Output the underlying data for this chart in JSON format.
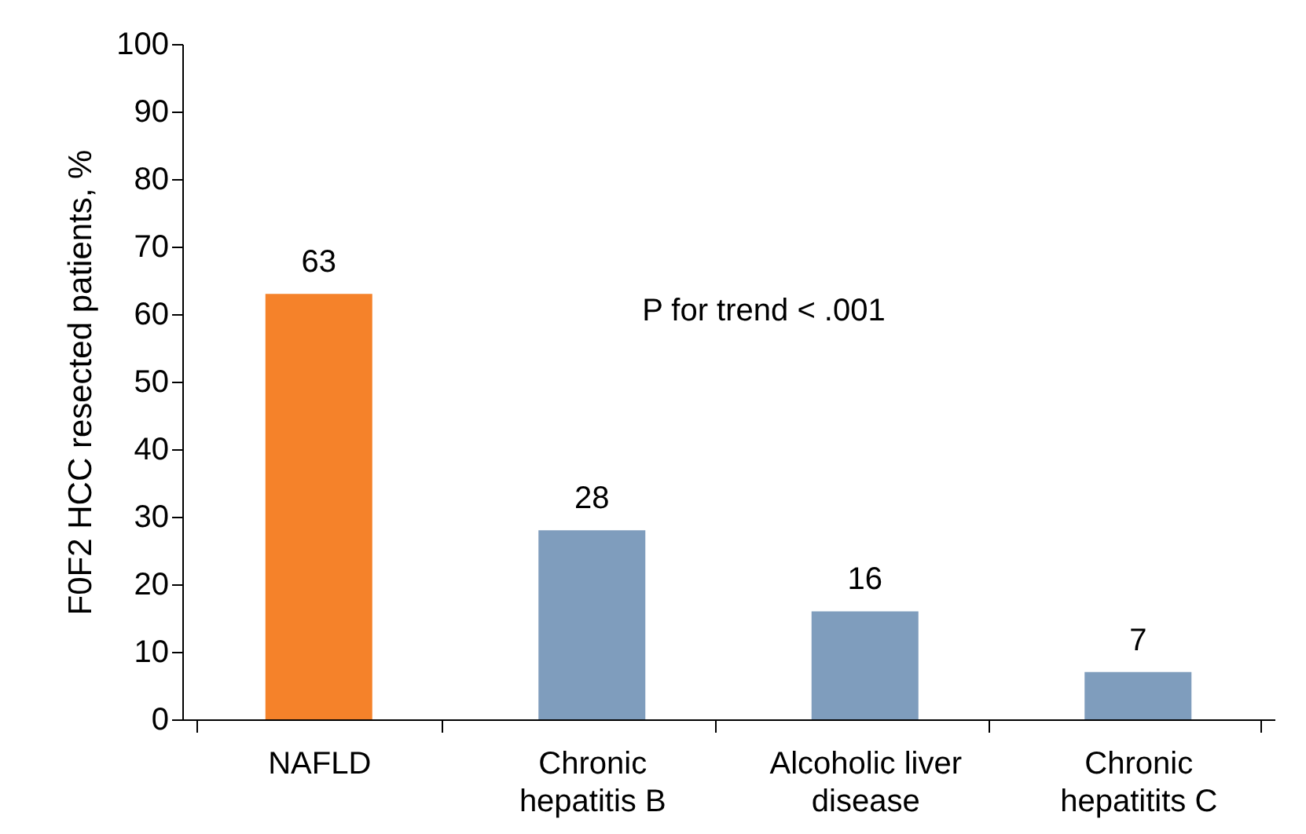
{
  "chart_data": {
    "type": "bar",
    "ylabel": "F0F2 HCC resected patients, %",
    "categories": [
      "NAFLD",
      "Chronic\nhepatitis B",
      "Alcoholic liver\ndisease",
      "Chronic\nhepatitits C"
    ],
    "values": [
      63,
      28,
      16,
      7
    ],
    "colors": [
      "#f5822a",
      "#7f9dbd",
      "#7f9dbd",
      "#7f9dbd"
    ],
    "ylim": [
      0,
      100
    ],
    "yticks": [
      0,
      10,
      20,
      30,
      40,
      50,
      60,
      70,
      80,
      90,
      100
    ],
    "data_labels": true,
    "annotations": [
      "P for trend < .001"
    ]
  }
}
